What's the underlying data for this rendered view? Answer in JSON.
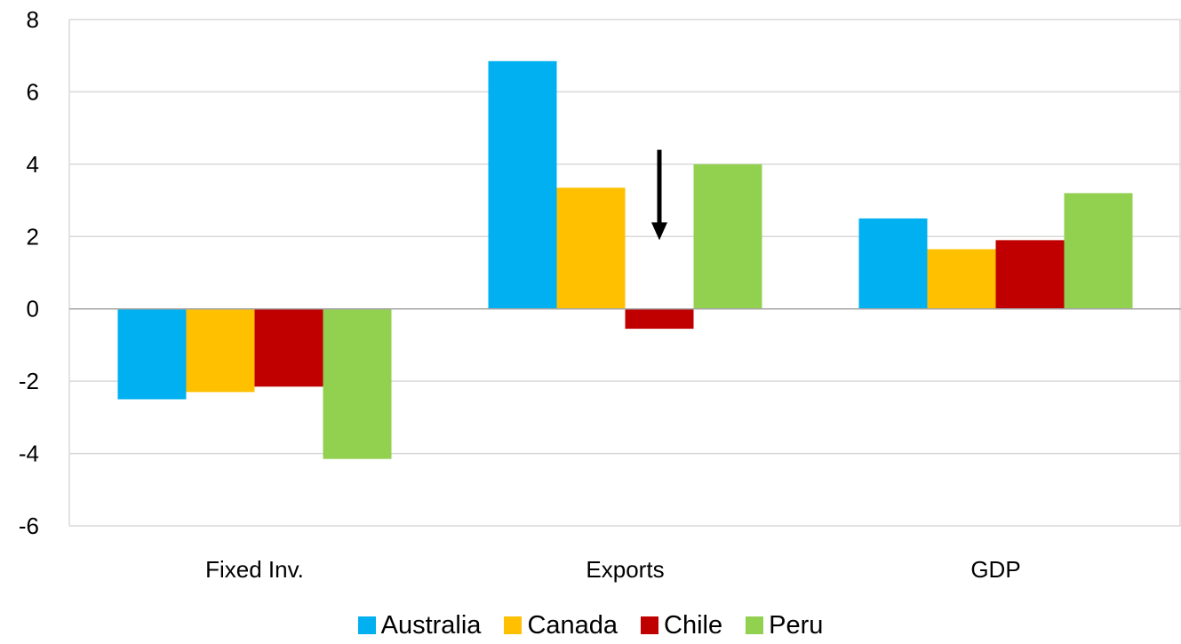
{
  "chart_data": {
    "type": "bar",
    "categories": [
      "Fixed Inv.",
      "Exports",
      "GDP"
    ],
    "series": [
      {
        "name": "Australia",
        "color": "#00B0F0",
        "values": [
          -2.5,
          6.85,
          2.5
        ]
      },
      {
        "name": "Canada",
        "color": "#FFC000",
        "values": [
          -2.3,
          3.35,
          1.65
        ]
      },
      {
        "name": "Chile",
        "color": "#C00000",
        "values": [
          -2.15,
          -0.55,
          1.9
        ]
      },
      {
        "name": "Peru",
        "color": "#92D050",
        "values": [
          -4.15,
          4.0,
          3.2
        ]
      }
    ],
    "ylim": [
      -6,
      8
    ],
    "yticks": [
      "-6",
      "-4",
      "-2",
      "0",
      "2",
      "4",
      "6",
      "8"
    ],
    "grid": true,
    "legend_position": "bottom",
    "annotations": [
      {
        "type": "arrow",
        "direction": "down",
        "category": "Exports",
        "series": "Chile",
        "from_value": 4.4,
        "to_value": 1.9
      }
    ]
  }
}
